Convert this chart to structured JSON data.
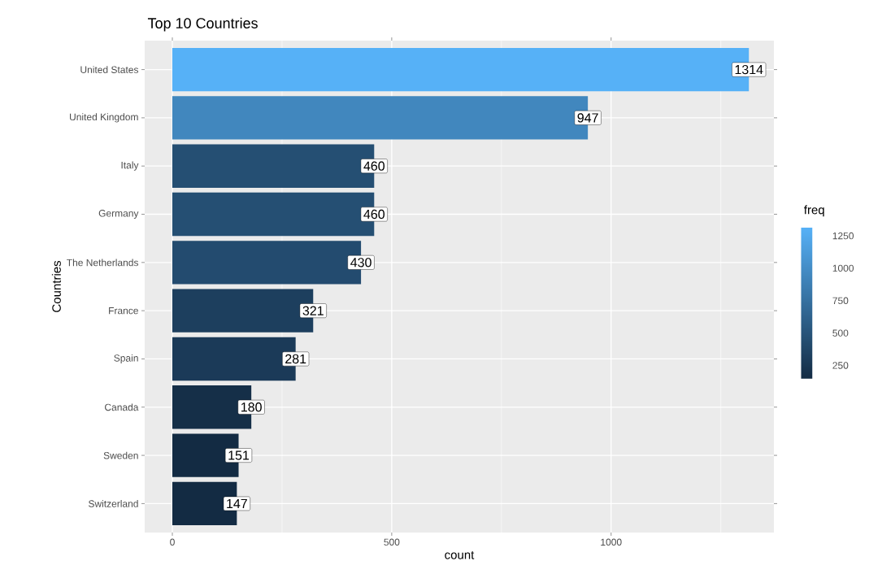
{
  "chart_data": {
    "type": "bar",
    "orientation": "horizontal",
    "title": "Top 10 Countries",
    "xlabel": "count",
    "ylabel": "Countries",
    "clabel": "freq",
    "categories": [
      "United States",
      "United Kingdom",
      "Italy",
      "Germany",
      "The Netherlands",
      "France",
      "Spain",
      "Canada",
      "Sweden",
      "Switzerland"
    ],
    "values": [
      1314,
      947,
      460,
      460,
      430,
      321,
      281,
      180,
      151,
      147
    ],
    "colors": [
      "#56b1f7",
      "#4187be",
      "#254f73",
      "#254f73",
      "#234b6f",
      "#1d3f5e",
      "#1b3a58",
      "#152f48",
      "#132b43",
      "#132b43"
    ],
    "xlim": [
      -63,
      1371
    ],
    "xticks": [
      0,
      {
        "value": 250,
        "label": null
      },
      500,
      {
        "value": 750,
        "label": null
      },
      1000,
      {
        "value": 1250,
        "label": null
      }
    ],
    "clim": [
      147,
      1314
    ],
    "cticks": [
      250,
      500,
      750,
      1000,
      1250
    ],
    "grid": true,
    "data_labels": true
  }
}
